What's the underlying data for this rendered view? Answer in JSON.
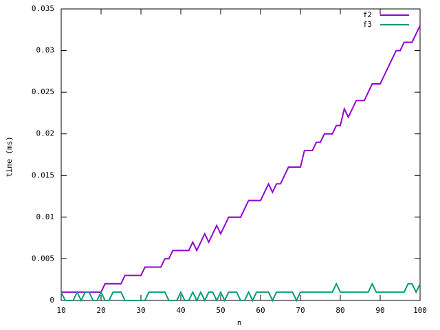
{
  "chart_data": {
    "type": "line",
    "xlabel": "n",
    "ylabel": "time (ms)",
    "x": [
      10,
      11,
      12,
      13,
      14,
      15,
      16,
      17,
      18,
      19,
      20,
      21,
      22,
      23,
      24,
      25,
      26,
      27,
      28,
      29,
      30,
      31,
      32,
      33,
      34,
      35,
      36,
      37,
      38,
      39,
      40,
      41,
      42,
      43,
      44,
      45,
      46,
      47,
      48,
      49,
      50,
      51,
      52,
      53,
      54,
      55,
      56,
      57,
      58,
      59,
      60,
      61,
      62,
      63,
      64,
      65,
      66,
      67,
      68,
      69,
      70,
      71,
      72,
      73,
      74,
      75,
      76,
      77,
      78,
      79,
      80,
      81,
      82,
      83,
      84,
      85,
      86,
      87,
      88,
      89,
      90,
      91,
      92,
      93,
      94,
      95,
      96,
      97,
      98,
      99,
      100
    ],
    "series": [
      {
        "name": "f2",
        "color": "#9400d3",
        "values": [
          0.001,
          0.001,
          0.001,
          0.001,
          0.001,
          0.001,
          0.001,
          0.001,
          0.001,
          0.001,
          0.001,
          0.002,
          0.002,
          0.002,
          0.002,
          0.002,
          0.003,
          0.003,
          0.003,
          0.003,
          0.003,
          0.004,
          0.004,
          0.004,
          0.004,
          0.004,
          0.005,
          0.005,
          0.006,
          0.006,
          0.006,
          0.006,
          0.006,
          0.007,
          0.006,
          0.007,
          0.008,
          0.007,
          0.008,
          0.009,
          0.008,
          0.009,
          0.01,
          0.01,
          0.01,
          0.01,
          0.011,
          0.012,
          0.012,
          0.012,
          0.012,
          0.013,
          0.014,
          0.013,
          0.014,
          0.014,
          0.015,
          0.016,
          0.016,
          0.016,
          0.016,
          0.018,
          0.018,
          0.018,
          0.019,
          0.019,
          0.02,
          0.02,
          0.02,
          0.021,
          0.021,
          0.023,
          0.022,
          0.023,
          0.024,
          0.024,
          0.024,
          0.025,
          0.026,
          0.026,
          0.026,
          0.027,
          0.028,
          0.029,
          0.03,
          0.03,
          0.031,
          0.031,
          0.031,
          0.032,
          0.033
        ]
      },
      {
        "name": "f3",
        "color": "#009e73",
        "values": [
          0.001,
          0,
          0,
          0,
          0.001,
          0,
          0.001,
          0.001,
          0,
          0,
          0.001,
          0,
          0,
          0.001,
          0.001,
          0.001,
          0,
          0,
          0,
          0,
          0,
          0,
          0.001,
          0.001,
          0.001,
          0.001,
          0.001,
          0,
          0,
          0,
          0.001,
          0,
          0,
          0.001,
          0,
          0.001,
          0,
          0.001,
          0.001,
          0,
          0.001,
          0,
          0.001,
          0.001,
          0.001,
          0,
          0,
          0.001,
          0,
          0.001,
          0.001,
          0.001,
          0.001,
          0,
          0.001,
          0.001,
          0.001,
          0.001,
          0.001,
          0,
          0.001,
          0.001,
          0.001,
          0.001,
          0.001,
          0.001,
          0.001,
          0.001,
          0.001,
          0.002,
          0.001,
          0.001,
          0.001,
          0.001,
          0.001,
          0.001,
          0.001,
          0.001,
          0.002,
          0.001,
          0.001,
          0.001,
          0.001,
          0.001,
          0.001,
          0.001,
          0.001,
          0.002,
          0.002,
          0.001,
          0.002
        ]
      }
    ],
    "xlim": [
      10,
      100
    ],
    "xticks": [
      10,
      20,
      30,
      40,
      50,
      60,
      70,
      80,
      90,
      100
    ],
    "ylim": [
      0,
      0.035
    ],
    "yticks": [
      0,
      0.005,
      0.01,
      0.015,
      0.02,
      0.025,
      0.03,
      0.035
    ],
    "grid": false,
    "legend": "top-right"
  }
}
